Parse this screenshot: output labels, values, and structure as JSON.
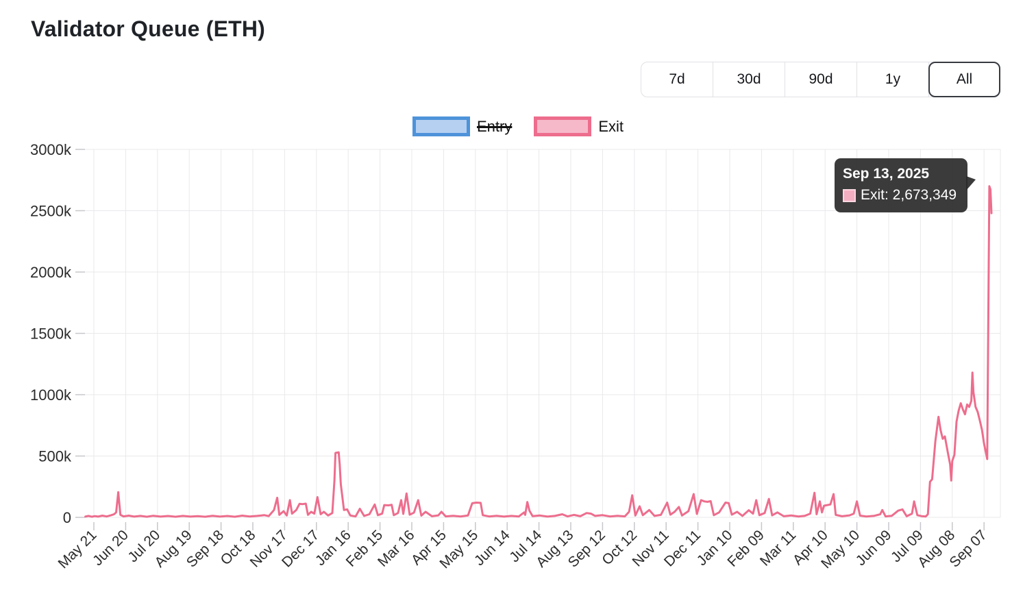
{
  "title": "Validator Queue (ETH)",
  "range_buttons": [
    "7d",
    "30d",
    "90d",
    "1y",
    "All"
  ],
  "selected_range": "All",
  "legend": [
    {
      "label": "Entry",
      "disabled": true,
      "border_color": "#4e93da",
      "fill_color": "#b5d0f1"
    },
    {
      "label": "Exit",
      "disabled": false,
      "border_color": "#ed6d8d",
      "fill_color": "#f6b9c9"
    }
  ],
  "tooltip": {
    "date": "Sep 13, 2025",
    "text": "Exit: 2,673,349",
    "series": "Exit",
    "value": "2,673,349"
  },
  "chart_data": {
    "type": "line",
    "title": "Validator Queue (ETH)",
    "ylabel": "",
    "xlabel": "",
    "ylim": [
      0,
      3000000
    ],
    "grid": true,
    "legend_position": "top",
    "y_tick_labels": [
      "0",
      "500k",
      "1000k",
      "1500k",
      "2000k",
      "2500k",
      "3000k"
    ],
    "x_tick_start": "2023-05-21",
    "x_tick_interval_days": 30,
    "x_tick_labels": [
      "May 21",
      "Jun 20",
      "Jul 20",
      "Aug 19",
      "Sep 18",
      "Oct 18",
      "Nov 17",
      "Dec 17",
      "Jan 16",
      "Feb 15",
      "Mar 16",
      "Apr 15",
      "May 15",
      "Jun 14",
      "Jul 14",
      "Aug 13",
      "Sep 12",
      "Oct 12",
      "Nov 11",
      "Dec 11",
      "Jan 10",
      "Feb 09",
      "Mar 11",
      "Apr 10",
      "May 10",
      "Jun 09",
      "Jul 09",
      "Aug 08",
      "Sep 07"
    ],
    "series": [
      {
        "name": "Entry",
        "color": "#4e93da",
        "visible": false,
        "points": []
      },
      {
        "name": "Exit",
        "color": "#ed6d8d",
        "visible": true,
        "points": [
          [
            "2023-05-13",
            6000
          ],
          [
            "2023-05-16",
            12000
          ],
          [
            "2023-05-19",
            5000
          ],
          [
            "2023-05-22",
            10000
          ],
          [
            "2023-05-25",
            6000
          ],
          [
            "2023-05-29",
            14000
          ],
          [
            "2023-06-02",
            7000
          ],
          [
            "2023-06-06",
            16000
          ],
          [
            "2023-06-09",
            25000
          ],
          [
            "2023-06-11",
            40000
          ],
          [
            "2023-06-13",
            205000
          ],
          [
            "2023-06-15",
            20000
          ],
          [
            "2023-06-18",
            8000
          ],
          [
            "2023-06-23",
            14000
          ],
          [
            "2023-06-28",
            6000
          ],
          [
            "2023-07-04",
            12000
          ],
          [
            "2023-07-10",
            5000
          ],
          [
            "2023-07-16",
            13000
          ],
          [
            "2023-07-23",
            6000
          ],
          [
            "2023-07-30",
            11000
          ],
          [
            "2023-08-06",
            5000
          ],
          [
            "2023-08-13",
            12000
          ],
          [
            "2023-08-20",
            6000
          ],
          [
            "2023-08-27",
            10000
          ],
          [
            "2023-09-03",
            5000
          ],
          [
            "2023-09-10",
            13000
          ],
          [
            "2023-09-17",
            6000
          ],
          [
            "2023-09-24",
            11000
          ],
          [
            "2023-10-01",
            5000
          ],
          [
            "2023-10-08",
            14000
          ],
          [
            "2023-10-15",
            7000
          ],
          [
            "2023-10-22",
            12000
          ],
          [
            "2023-10-29",
            18000
          ],
          [
            "2023-11-02",
            10000
          ],
          [
            "2023-11-04",
            30000
          ],
          [
            "2023-11-07",
            60000
          ],
          [
            "2023-11-10",
            160000
          ],
          [
            "2023-11-12",
            20000
          ],
          [
            "2023-11-16",
            50000
          ],
          [
            "2023-11-19",
            15000
          ],
          [
            "2023-11-22",
            140000
          ],
          [
            "2023-11-24",
            30000
          ],
          [
            "2023-11-28",
            60000
          ],
          [
            "2023-12-01",
            110000
          ],
          [
            "2023-12-04",
            108000
          ],
          [
            "2023-12-07",
            112000
          ],
          [
            "2023-12-09",
            20000
          ],
          [
            "2023-12-12",
            45000
          ],
          [
            "2023-12-15",
            30000
          ],
          [
            "2023-12-18",
            165000
          ],
          [
            "2023-12-21",
            25000
          ],
          [
            "2023-12-24",
            45000
          ],
          [
            "2023-12-28",
            15000
          ],
          [
            "2024-01-01",
            35000
          ],
          [
            "2024-01-03",
            300000
          ],
          [
            "2024-01-04",
            525000
          ],
          [
            "2024-01-07",
            530000
          ],
          [
            "2024-01-08",
            430000
          ],
          [
            "2024-01-09",
            270000
          ],
          [
            "2024-01-12",
            60000
          ],
          [
            "2024-01-15",
            65000
          ],
          [
            "2024-01-18",
            15000
          ],
          [
            "2024-01-23",
            8000
          ],
          [
            "2024-01-27",
            70000
          ],
          [
            "2024-01-31",
            12000
          ],
          [
            "2024-02-05",
            25000
          ],
          [
            "2024-02-10",
            105000
          ],
          [
            "2024-02-13",
            18000
          ],
          [
            "2024-02-17",
            30000
          ],
          [
            "2024-02-19",
            100000
          ],
          [
            "2024-02-23",
            98000
          ],
          [
            "2024-02-26",
            102000
          ],
          [
            "2024-02-28",
            18000
          ],
          [
            "2024-03-03",
            35000
          ],
          [
            "2024-03-06",
            140000
          ],
          [
            "2024-03-08",
            28000
          ],
          [
            "2024-03-11",
            195000
          ],
          [
            "2024-03-14",
            22000
          ],
          [
            "2024-03-18",
            38000
          ],
          [
            "2024-03-22",
            140000
          ],
          [
            "2024-03-25",
            14000
          ],
          [
            "2024-03-29",
            45000
          ],
          [
            "2024-04-04",
            9000
          ],
          [
            "2024-04-10",
            16000
          ],
          [
            "2024-04-13",
            45000
          ],
          [
            "2024-04-17",
            8000
          ],
          [
            "2024-04-24",
            13000
          ],
          [
            "2024-05-01",
            7000
          ],
          [
            "2024-05-08",
            15000
          ],
          [
            "2024-05-12",
            115000
          ],
          [
            "2024-05-16",
            120000
          ],
          [
            "2024-05-20",
            118000
          ],
          [
            "2024-05-22",
            18000
          ],
          [
            "2024-05-28",
            7000
          ],
          [
            "2024-06-04",
            13000
          ],
          [
            "2024-06-11",
            6000
          ],
          [
            "2024-06-18",
            12000
          ],
          [
            "2024-06-25",
            7000
          ],
          [
            "2024-06-30",
            40000
          ],
          [
            "2024-07-01",
            20000
          ],
          [
            "2024-07-03",
            125000
          ],
          [
            "2024-07-05",
            55000
          ],
          [
            "2024-07-08",
            10000
          ],
          [
            "2024-07-15",
            15000
          ],
          [
            "2024-07-22",
            6000
          ],
          [
            "2024-07-29",
            12000
          ],
          [
            "2024-08-05",
            25000
          ],
          [
            "2024-08-10",
            8000
          ],
          [
            "2024-08-16",
            20000
          ],
          [
            "2024-08-22",
            9000
          ],
          [
            "2024-08-28",
            35000
          ],
          [
            "2024-09-01",
            30000
          ],
          [
            "2024-09-05",
            12000
          ],
          [
            "2024-09-12",
            18000
          ],
          [
            "2024-09-19",
            7000
          ],
          [
            "2024-09-26",
            13000
          ],
          [
            "2024-10-03",
            8000
          ],
          [
            "2024-10-07",
            45000
          ],
          [
            "2024-10-10",
            180000
          ],
          [
            "2024-10-13",
            15000
          ],
          [
            "2024-10-17",
            90000
          ],
          [
            "2024-10-20",
            18000
          ],
          [
            "2024-10-26",
            60000
          ],
          [
            "2024-10-31",
            12000
          ],
          [
            "2024-11-06",
            20000
          ],
          [
            "2024-11-12",
            120000
          ],
          [
            "2024-11-15",
            22000
          ],
          [
            "2024-11-19",
            45000
          ],
          [
            "2024-11-23",
            85000
          ],
          [
            "2024-11-26",
            15000
          ],
          [
            "2024-12-02",
            50000
          ],
          [
            "2024-12-07",
            190000
          ],
          [
            "2024-12-10",
            28000
          ],
          [
            "2024-12-14",
            140000
          ],
          [
            "2024-12-17",
            130000
          ],
          [
            "2024-12-20",
            126000
          ],
          [
            "2024-12-23",
            132000
          ],
          [
            "2024-12-26",
            18000
          ],
          [
            "2024-12-31",
            40000
          ],
          [
            "2025-01-06",
            120000
          ],
          [
            "2025-01-09",
            116000
          ],
          [
            "2025-01-12",
            22000
          ],
          [
            "2025-01-17",
            45000
          ],
          [
            "2025-01-22",
            12000
          ],
          [
            "2025-01-28",
            58000
          ],
          [
            "2025-02-01",
            30000
          ],
          [
            "2025-02-04",
            140000
          ],
          [
            "2025-02-07",
            18000
          ],
          [
            "2025-02-12",
            35000
          ],
          [
            "2025-02-16",
            150000
          ],
          [
            "2025-02-19",
            16000
          ],
          [
            "2025-02-24",
            40000
          ],
          [
            "2025-03-02",
            9000
          ],
          [
            "2025-03-09",
            15000
          ],
          [
            "2025-03-16",
            7000
          ],
          [
            "2025-03-22",
            13000
          ],
          [
            "2025-03-27",
            30000
          ],
          [
            "2025-03-31",
            200000
          ],
          [
            "2025-04-02",
            25000
          ],
          [
            "2025-04-05",
            130000
          ],
          [
            "2025-04-07",
            40000
          ],
          [
            "2025-04-09",
            95000
          ],
          [
            "2025-04-12",
            100000
          ],
          [
            "2025-04-15",
            105000
          ],
          [
            "2025-04-18",
            190000
          ],
          [
            "2025-04-20",
            20000
          ],
          [
            "2025-04-26",
            9000
          ],
          [
            "2025-05-03",
            16000
          ],
          [
            "2025-05-07",
            30000
          ],
          [
            "2025-05-10",
            130000
          ],
          [
            "2025-05-13",
            14000
          ],
          [
            "2025-05-19",
            7000
          ],
          [
            "2025-05-26",
            12000
          ],
          [
            "2025-06-01",
            25000
          ],
          [
            "2025-06-03",
            60000
          ],
          [
            "2025-06-06",
            8000
          ],
          [
            "2025-06-12",
            13000
          ],
          [
            "2025-06-18",
            55000
          ],
          [
            "2025-06-22",
            65000
          ],
          [
            "2025-06-26",
            9000
          ],
          [
            "2025-07-01",
            30000
          ],
          [
            "2025-07-03",
            130000
          ],
          [
            "2025-07-06",
            18000
          ],
          [
            "2025-07-10",
            10000
          ],
          [
            "2025-07-14",
            7000
          ],
          [
            "2025-07-16",
            25000
          ],
          [
            "2025-07-18",
            290000
          ],
          [
            "2025-07-20",
            310000
          ],
          [
            "2025-07-23",
            620000
          ],
          [
            "2025-07-26",
            820000
          ],
          [
            "2025-07-28",
            710000
          ],
          [
            "2025-07-30",
            640000
          ],
          [
            "2025-08-01",
            660000
          ],
          [
            "2025-08-04",
            520000
          ],
          [
            "2025-08-06",
            430000
          ],
          [
            "2025-08-07",
            300000
          ],
          [
            "2025-08-08",
            460000
          ],
          [
            "2025-08-10",
            510000
          ],
          [
            "2025-08-12",
            780000
          ],
          [
            "2025-08-14",
            870000
          ],
          [
            "2025-08-16",
            930000
          ],
          [
            "2025-08-18",
            880000
          ],
          [
            "2025-08-20",
            840000
          ],
          [
            "2025-08-22",
            920000
          ],
          [
            "2025-08-24",
            900000
          ],
          [
            "2025-08-26",
            950000
          ],
          [
            "2025-08-27",
            1180000
          ],
          [
            "2025-08-28",
            1020000
          ],
          [
            "2025-08-30",
            900000
          ],
          [
            "2025-09-01",
            860000
          ],
          [
            "2025-09-03",
            790000
          ],
          [
            "2025-09-05",
            715000
          ],
          [
            "2025-09-07",
            600000
          ],
          [
            "2025-09-10",
            475000
          ],
          [
            "2025-09-12",
            2700000
          ],
          [
            "2025-09-13",
            2673349
          ],
          [
            "2025-09-14",
            2480000
          ]
        ]
      }
    ]
  }
}
